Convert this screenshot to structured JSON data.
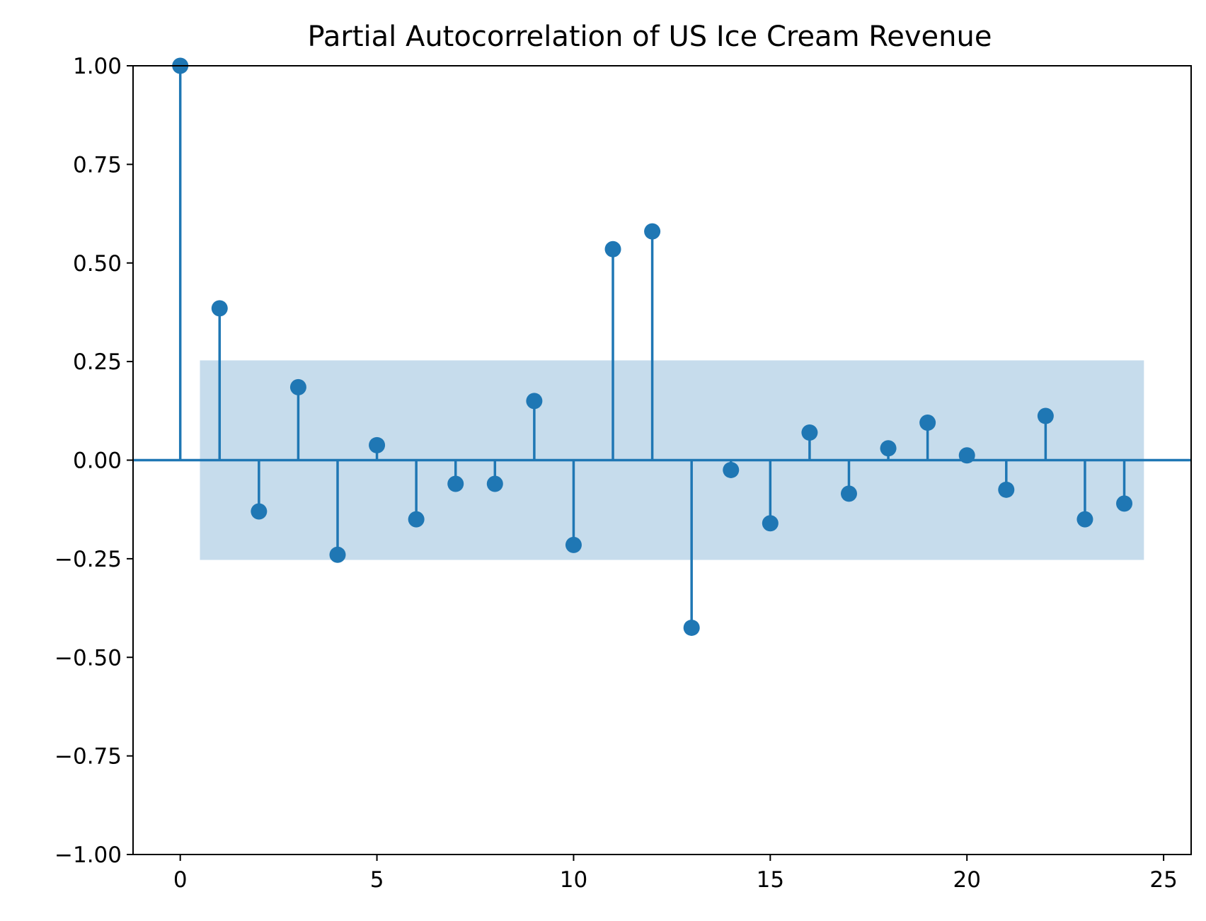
{
  "chart_data": {
    "type": "stem",
    "title": "Partial Autocorrelation of US Ice Cream Revenue",
    "xlabel": "",
    "ylabel": "",
    "xlim": [
      -1.2,
      25.7
    ],
    "ylim": [
      -1.0,
      1.0
    ],
    "xticks": [
      0,
      5,
      10,
      15,
      20,
      25
    ],
    "yticks": [
      -1.0,
      -0.75,
      -0.5,
      -0.25,
      0.0,
      0.25,
      0.5,
      0.75,
      1.0
    ],
    "xtick_labels": [
      "0",
      "5",
      "10",
      "15",
      "20",
      "25"
    ],
    "ytick_labels": [
      "−1.00",
      "−0.75",
      "−0.50",
      "−0.25",
      "0.00",
      "0.25",
      "0.50",
      "0.75",
      "1.00"
    ],
    "confidence_band": {
      "x_range": [
        0.5,
        24.5
      ],
      "lower": -0.253,
      "upper": 0.253
    },
    "series": [
      {
        "x": [
          0,
          1,
          2,
          3,
          4,
          5,
          6,
          7,
          8,
          9,
          10,
          11,
          12,
          13,
          14,
          15,
          16,
          17,
          18,
          19,
          20,
          21,
          22,
          23,
          24
        ],
        "values": [
          1.0,
          0.385,
          -0.13,
          0.185,
          -0.24,
          0.038,
          -0.15,
          -0.06,
          -0.06,
          0.15,
          -0.215,
          0.535,
          0.58,
          -0.425,
          -0.025,
          -0.16,
          0.07,
          -0.085,
          0.03,
          0.095,
          0.012,
          -0.075,
          0.112,
          -0.15,
          -0.11
        ]
      }
    ],
    "colors": {
      "series": "#1f77b4",
      "band": "#c6dcec",
      "axis": "#000000"
    },
    "grid": false
  }
}
